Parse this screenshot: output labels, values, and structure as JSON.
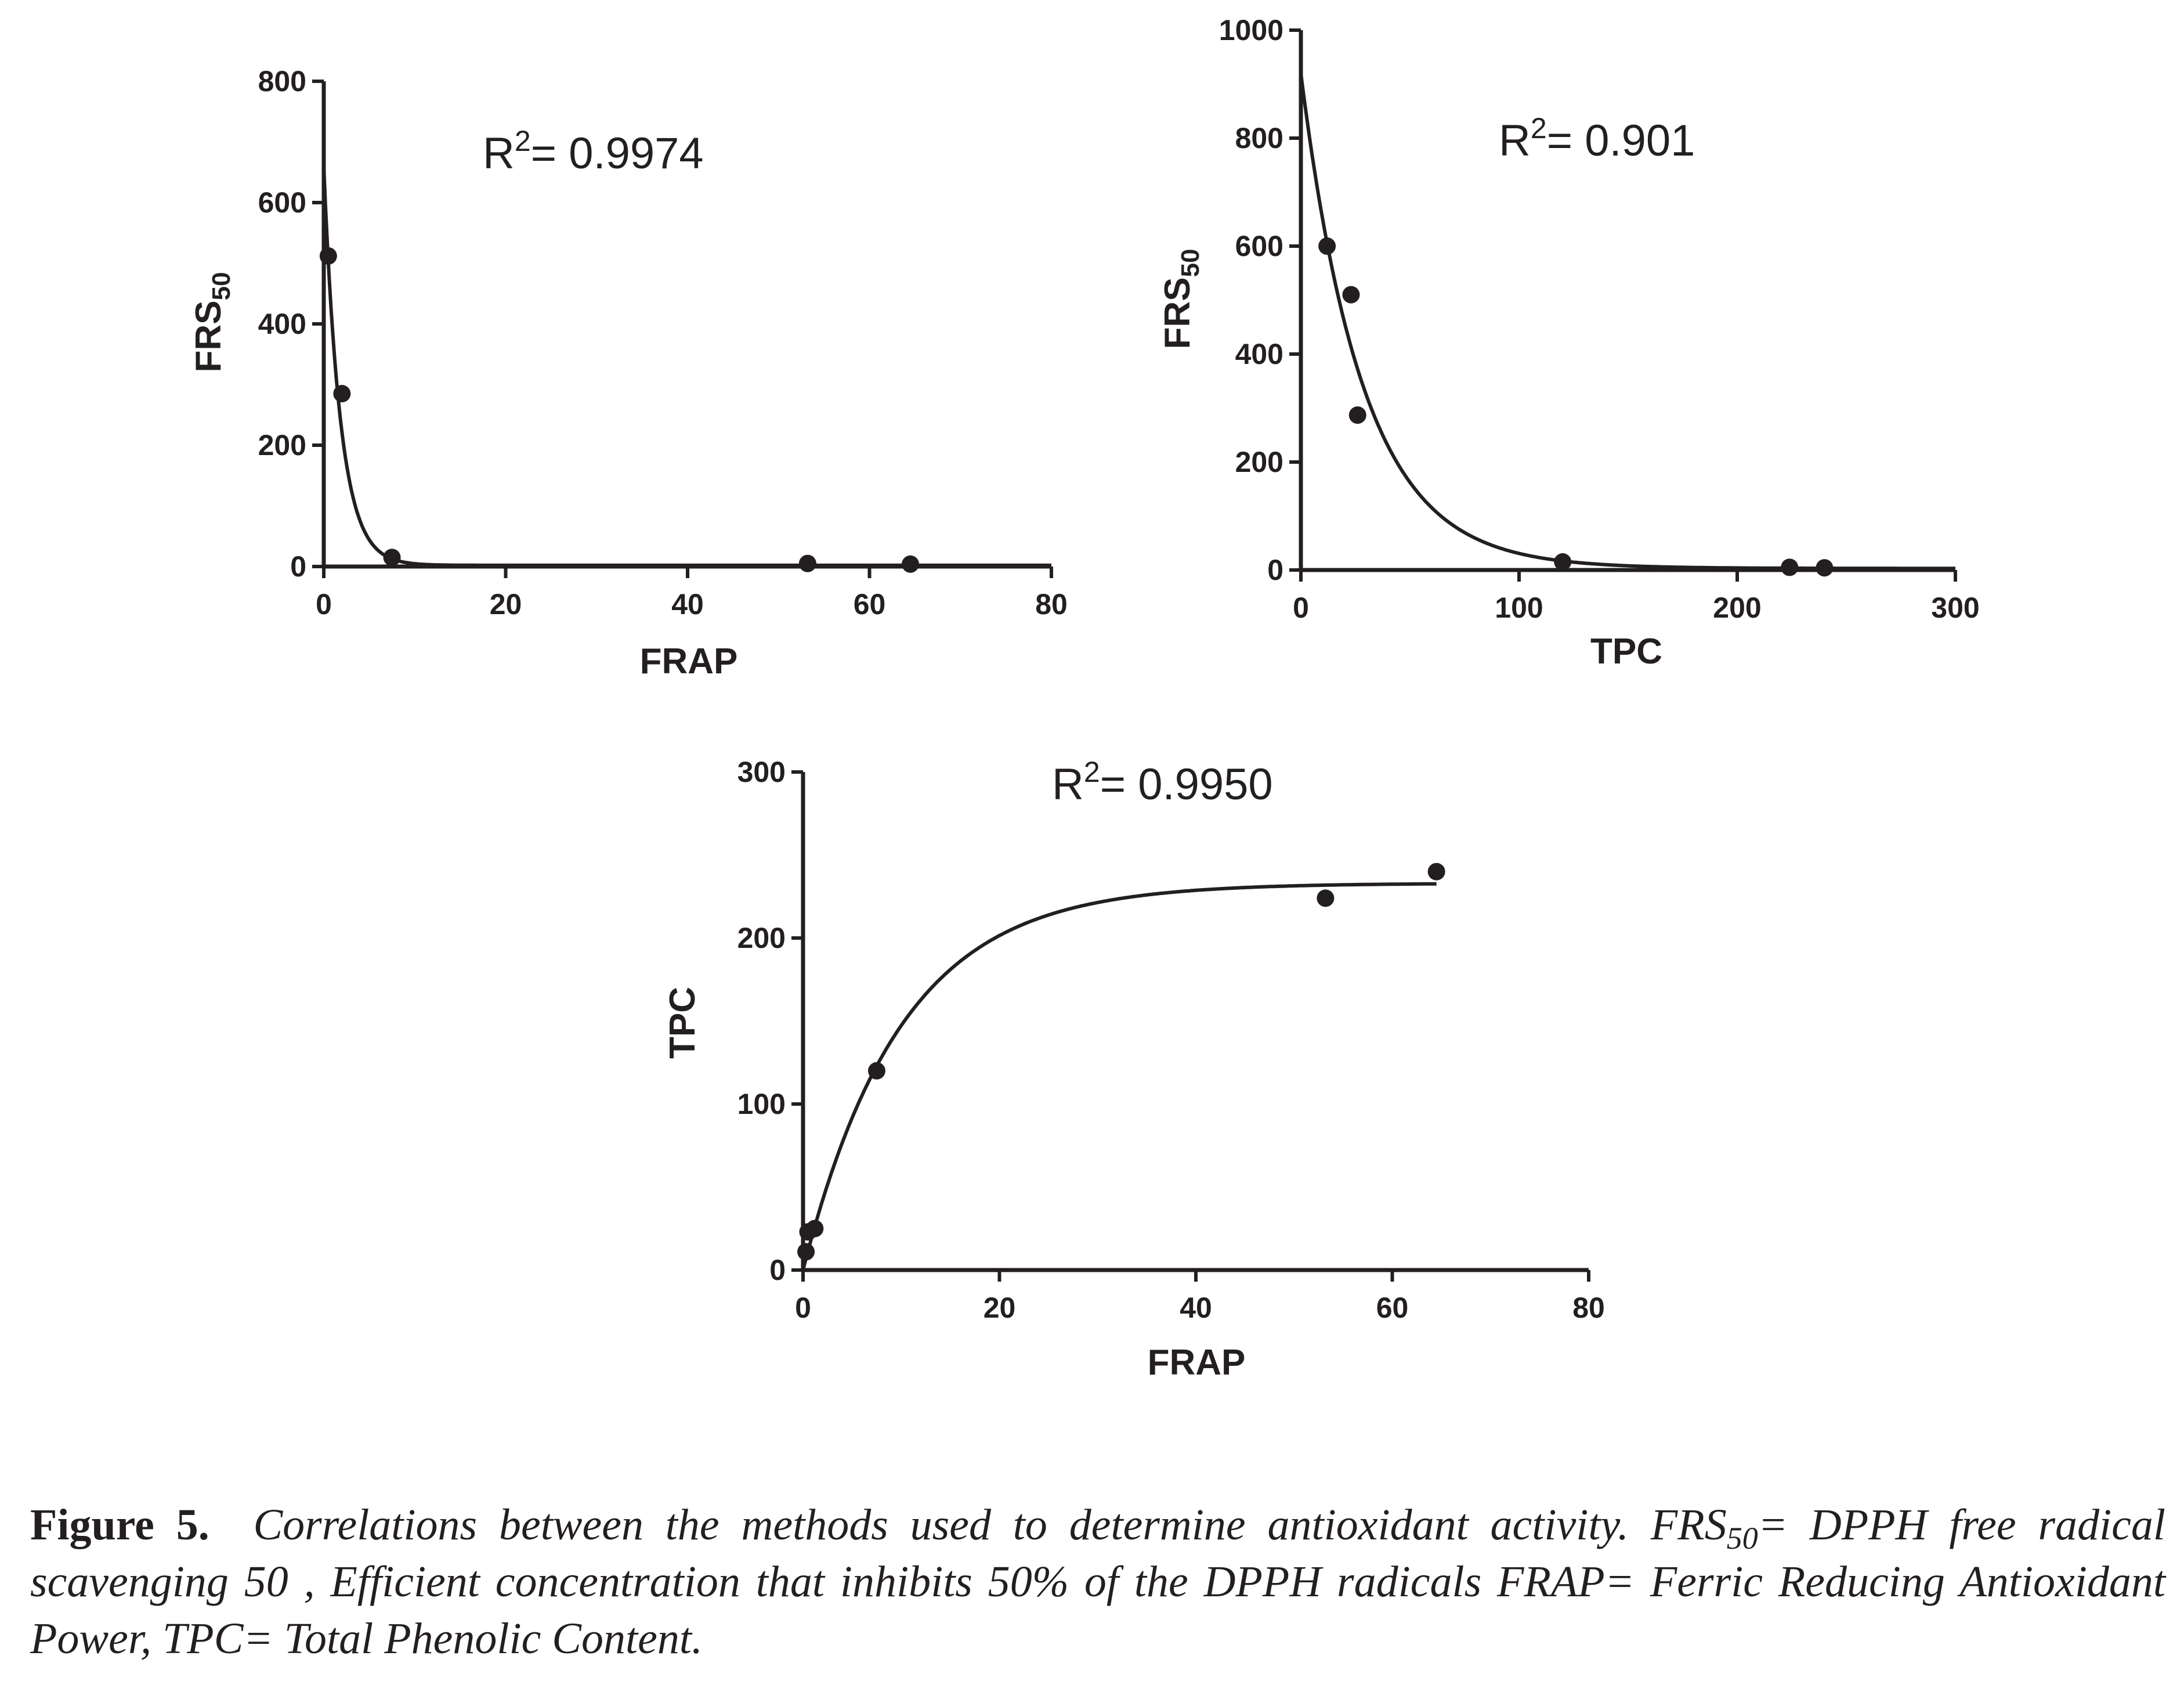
{
  "chart_data": [
    {
      "type": "scatter",
      "xlabel": "FRAP",
      "ylabel": "FRS",
      "ylabel_sub": "50",
      "annotation": {
        "base": "R",
        "sup": "2",
        "value": "= 0.9974"
      },
      "xlim": [
        0,
        80
      ],
      "ylim": [
        0,
        800
      ],
      "xticks": [
        0,
        20,
        40,
        60,
        80
      ],
      "yticks": [
        0,
        200,
        400,
        600,
        800
      ],
      "grid": false,
      "points": [
        {
          "x": 0.5,
          "y": 512
        },
        {
          "x": 2.0,
          "y": 285
        },
        {
          "x": 7.5,
          "y": 15
        },
        {
          "x": 53.2,
          "y": 5
        },
        {
          "x": 64.5,
          "y": 4
        }
      ],
      "fit": {
        "model": "exponential decay",
        "x_start": 0,
        "x_end": 80,
        "y0": 660,
        "plateau": 2,
        "k": 0.55
      }
    },
    {
      "type": "scatter",
      "xlabel": "TPC",
      "ylabel": "FRS",
      "ylabel_sub": "50",
      "annotation": {
        "base": "R",
        "sup": "2",
        "value": "= 0.901"
      },
      "xlim": [
        0,
        300
      ],
      "ylim": [
        0,
        1000
      ],
      "xticks": [
        0,
        100,
        200,
        300
      ],
      "yticks": [
        0,
        200,
        400,
        600,
        800,
        1000
      ],
      "grid": false,
      "points": [
        {
          "x": 12,
          "y": 600
        },
        {
          "x": 23,
          "y": 510
        },
        {
          "x": 26,
          "y": 287
        },
        {
          "x": 120,
          "y": 15
        },
        {
          "x": 224,
          "y": 5
        },
        {
          "x": 240,
          "y": 4
        }
      ],
      "fit": {
        "model": "exponential decay",
        "x_start": 0,
        "x_end": 300,
        "y0": 920,
        "plateau": 3,
        "k": 0.035
      }
    },
    {
      "type": "scatter",
      "xlabel": "FRAP",
      "ylabel": "TPC",
      "annotation": {
        "base": "R",
        "sup": "2",
        "value": "= 0.9950"
      },
      "xlim": [
        0,
        80
      ],
      "ylim": [
        0,
        300
      ],
      "xticks": [
        0,
        20,
        40,
        60,
        80
      ],
      "yticks": [
        0,
        100,
        200,
        300
      ],
      "grid": false,
      "points": [
        {
          "x": 0.3,
          "y": 11
        },
        {
          "x": 0.5,
          "y": 23
        },
        {
          "x": 1.2,
          "y": 25
        },
        {
          "x": 7.5,
          "y": 120
        },
        {
          "x": 53.2,
          "y": 224
        },
        {
          "x": 64.5,
          "y": 240
        }
      ],
      "fit": {
        "model": "one-phase association",
        "x_start": 0,
        "x_end": 64.5,
        "y0": 0,
        "plateau": 233,
        "k": 0.1
      }
    }
  ],
  "caption": {
    "label": "Figure 5.",
    "text_1": "Correlations between the methods used to determine antioxidant activity. FRS",
    "sub": "50",
    "text_2": "= DPPH  free radical scavenging 50 , Efficient concentration that inhibits 50% of the DPPH radicals FRAP= Ferric Reducing Antioxidant Power, TPC= Total Phenolic Content."
  }
}
